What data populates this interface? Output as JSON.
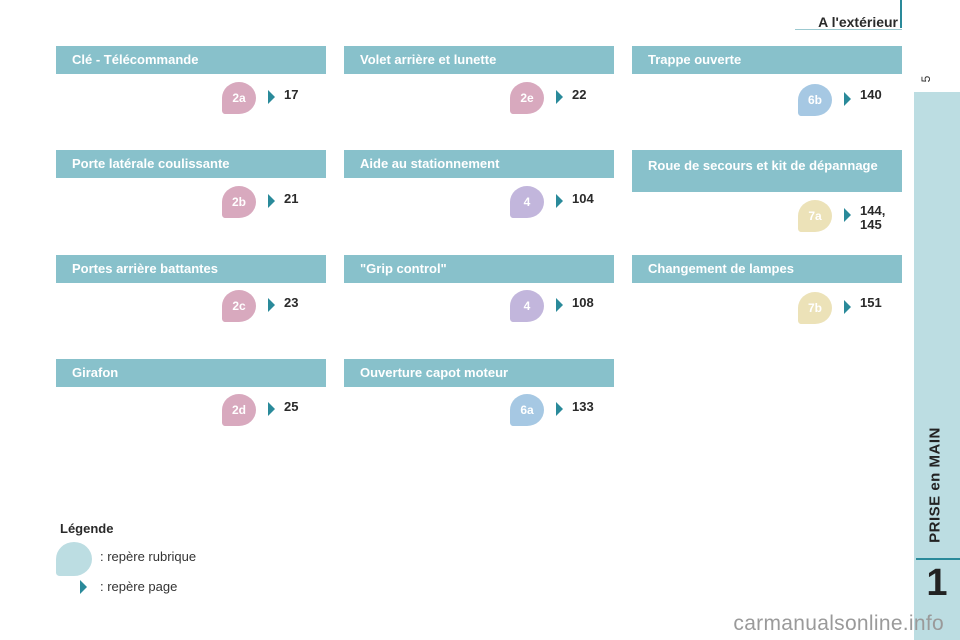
{
  "header": {
    "title": "A l'extérieur",
    "accent_color": "#2a8a9a"
  },
  "sidebar": {
    "page_number": "5",
    "label": "PRISE en MAIN",
    "chapter": "1",
    "color": "#bcdde2"
  },
  "columns": [
    {
      "sections": [
        {
          "title": "Clé - Télécommande",
          "badge": "2a",
          "badge_color": "#d8a9be",
          "page": "17"
        },
        {
          "title": "Porte latérale coulissante",
          "badge": "2b",
          "badge_color": "#d8a9be",
          "page": "21"
        },
        {
          "title": "Portes arrière battantes",
          "badge": "2c",
          "badge_color": "#d8a9be",
          "page": "23"
        },
        {
          "title": "Girafon",
          "badge": "2d",
          "badge_color": "#d8a9be",
          "page": "25"
        }
      ]
    },
    {
      "sections": [
        {
          "title": "Volet arrière et lunette",
          "badge": "2e",
          "badge_color": "#d8a9be",
          "page": "22"
        },
        {
          "title": "Aide au stationnement",
          "badge": "4",
          "badge_color": "#c2b6dc",
          "page": "104"
        },
        {
          "title": "\"Grip control\"",
          "badge": "4",
          "badge_color": "#c2b6dc",
          "page": "108"
        },
        {
          "title": "Ouverture capot moteur",
          "badge": "6a",
          "badge_color": "#a6c8e3",
          "page": "133"
        }
      ]
    },
    {
      "sections": [
        {
          "title": "Trappe ouverte",
          "badge": "6b",
          "badge_color": "#a6c8e3",
          "page": "140"
        },
        {
          "title": "Roue de secours et kit de dépannage",
          "badge": "7a",
          "badge_color": "#ece2b8",
          "page_line1": "144,",
          "page_line2": "145"
        },
        {
          "title": "Changement de lampes",
          "badge": "7b",
          "badge_color": "#ece2b8",
          "page": "151"
        }
      ]
    }
  ],
  "legend": {
    "title": "Légende",
    "badge_text": ": repère rubrique",
    "arrow_text": ": repère page"
  },
  "watermark": "carmanualsonline.info"
}
